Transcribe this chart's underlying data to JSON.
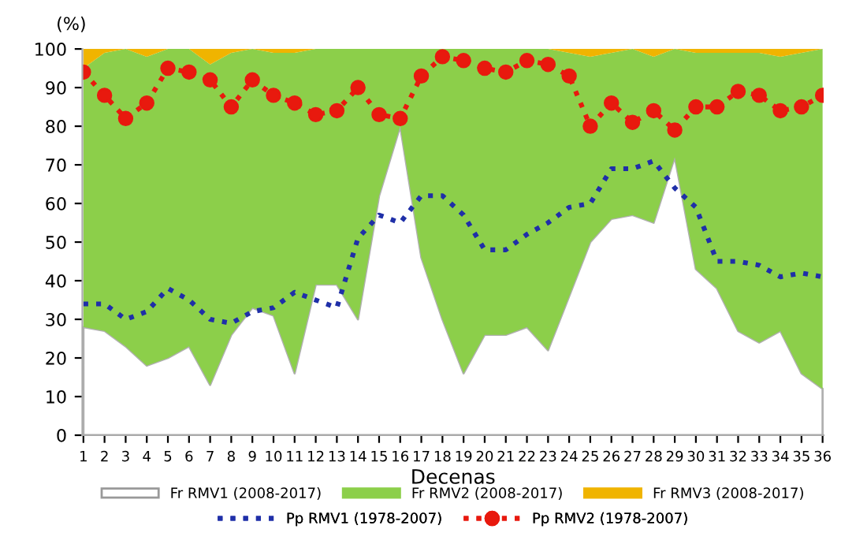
{
  "chart_data": {
    "type": "area",
    "stacked": true,
    "xlabel": "Decenas",
    "ylabel": "(%)",
    "categories": [
      "1",
      "2",
      "3",
      "4",
      "5",
      "6",
      "7",
      "8",
      "9",
      "10",
      "11",
      "12",
      "13",
      "14",
      "15",
      "16",
      "17",
      "18",
      "19",
      "20",
      "21",
      "22",
      "23",
      "24",
      "25",
      "26",
      "27",
      "28",
      "29",
      "30",
      "31",
      "32",
      "33",
      "34",
      "35",
      "36"
    ],
    "ylim": [
      0,
      100
    ],
    "yticks": [
      0,
      10,
      20,
      30,
      40,
      50,
      60,
      70,
      80,
      90,
      100
    ],
    "grid": false,
    "legend": "bottom",
    "series": [
      {
        "name": "Fr RMV1 (2008-2017)",
        "color": "#ffffff",
        "values": [
          28,
          27,
          23,
          18,
          20,
          23,
          13,
          26,
          33,
          31,
          16,
          39,
          39,
          30,
          62,
          80,
          46,
          30,
          16,
          26,
          26,
          28,
          22,
          36,
          50,
          56,
          57,
          55,
          72,
          43,
          38,
          27,
          24,
          27,
          16,
          12
        ]
      },
      {
        "name": "Fr RMV2 (2008-2017)",
        "color": "#8ccf4a",
        "values": [
          67,
          72,
          77,
          80,
          80,
          77,
          83,
          73,
          67,
          68,
          83,
          61,
          61,
          70,
          38,
          20,
          54,
          70,
          84,
          74,
          74,
          72,
          78,
          63,
          48,
          43,
          43,
          43,
          28,
          56,
          61,
          72,
          75,
          71,
          83,
          88
        ]
      },
      {
        "name": "Fr RMV3 (2008-2017)",
        "color": "#f0b400",
        "values": [
          5,
          1,
          0,
          2,
          0,
          0,
          4,
          1,
          0,
          1,
          1,
          0,
          0,
          0,
          0,
          0,
          0,
          0,
          0,
          0,
          0,
          0,
          0,
          1,
          2,
          1,
          0,
          2,
          0,
          1,
          1,
          1,
          1,
          2,
          1,
          0
        ]
      },
      {
        "name": "Pp RMV1 (1978-2007)",
        "type": "line",
        "color": "#1f2fa8",
        "line_style": "dotted",
        "marker": "none",
        "values": [
          34,
          34,
          30,
          32,
          38,
          35,
          30,
          29,
          32,
          33,
          37,
          35,
          33,
          51,
          57,
          55,
          62,
          62,
          57,
          48,
          48,
          52,
          55,
          59,
          60,
          69,
          69,
          71,
          64,
          59,
          45,
          45,
          44,
          41,
          42,
          41
        ]
      },
      {
        "name": "Pp RMV2 (1978-2007)",
        "type": "line",
        "color": "#e8190e",
        "line_style": "dotted",
        "marker": "circle",
        "values": [
          94,
          88,
          82,
          86,
          95,
          94,
          92,
          85,
          92,
          88,
          86,
          83,
          84,
          90,
          83,
          82,
          93,
          98,
          97,
          95,
          94,
          97,
          96,
          93,
          80,
          86,
          81,
          84,
          79,
          85,
          85,
          89,
          88,
          84,
          85,
          88
        ]
      }
    ]
  }
}
